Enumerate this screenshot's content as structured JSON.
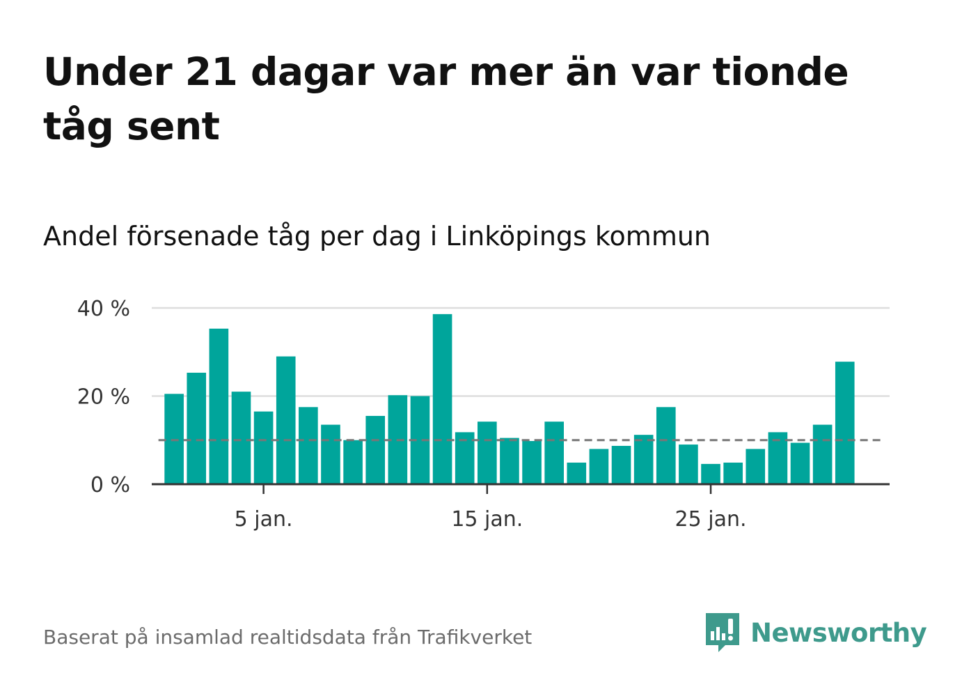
{
  "title": "Under 21 dagar var mer än var tionde tåg sent",
  "subtitle": "Andel försenade tåg per dag i Linköpings kommun",
  "source": "Baserat på insamlad realtidsdata från Trafikverket",
  "brand": {
    "name": "Newsworthy",
    "color": "#3e9a8c"
  },
  "colors": {
    "bar": "#00a59b",
    "axis": "#333333",
    "grid": "#dddddd",
    "reference": "#777777"
  },
  "chart_data": {
    "type": "bar",
    "title": "Andel försenade tåg per dag i Linköpings kommun",
    "xlabel": "",
    "ylabel": "",
    "x": [
      1,
      2,
      3,
      4,
      5,
      6,
      7,
      8,
      9,
      10,
      11,
      12,
      13,
      14,
      15,
      16,
      17,
      18,
      19,
      20,
      21,
      22,
      23,
      24,
      25,
      26,
      27,
      28,
      29,
      30,
      31
    ],
    "values": [
      20.5,
      25.3,
      35.3,
      21.0,
      16.5,
      29.0,
      17.5,
      13.5,
      10.0,
      15.5,
      20.2,
      20.0,
      38.6,
      11.8,
      14.2,
      10.5,
      9.8,
      14.2,
      4.9,
      8.0,
      8.7,
      11.2,
      17.5,
      9.0,
      4.6,
      4.9,
      8.0,
      11.8,
      9.4,
      13.5,
      27.8
    ],
    "reference_line": 10,
    "ylim": [
      0,
      40
    ],
    "xlim": [
      0,
      33
    ],
    "yticks": [
      0,
      20,
      40
    ],
    "ytick_labels": [
      "0 %",
      "20 %",
      "40 %"
    ],
    "xticks": [
      5,
      15,
      25
    ],
    "xtick_labels": [
      "5 jan.",
      "15 jan.",
      "25 jan."
    ],
    "grid": true,
    "legend": "none"
  }
}
